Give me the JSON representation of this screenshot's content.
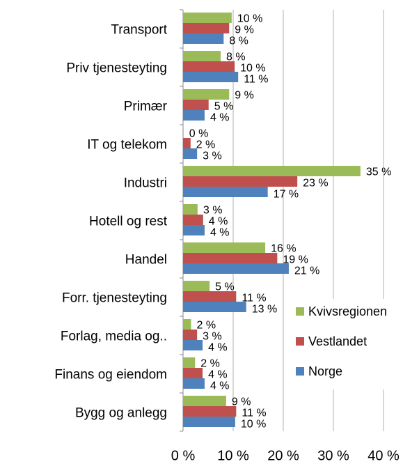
{
  "chart_data": {
    "type": "bar",
    "orientation": "horizontal",
    "categories": [
      "Transport",
      "Priv tjenesteyting",
      "Primær",
      "IT og telekom",
      "Industri",
      "Hotell og rest",
      "Handel",
      "Forr. tjenesteyting",
      "Forlag, media og..",
      "Finans og eiendom",
      "Bygg og anlegg"
    ],
    "series": [
      {
        "name": "Kvivsregionen",
        "color": "#9bbb59",
        "values": [
          9.7,
          7.5,
          9.2,
          0.1,
          35.4,
          2.9,
          16.4,
          5.3,
          1.6,
          2.4,
          8.6
        ],
        "value_labels": [
          "10 %",
          "8 %",
          "9 %",
          "0 %",
          "35 %",
          "3 %",
          "16 %",
          "5 %",
          "2 %",
          "2 %",
          "9 %"
        ]
      },
      {
        "name": "Vestlandet",
        "color": "#c0504d",
        "values": [
          9.2,
          10.3,
          5.1,
          1.5,
          22.8,
          4.0,
          18.8,
          10.6,
          2.8,
          3.9,
          10.6
        ],
        "value_labels": [
          "9 %",
          "10 %",
          "5 %",
          "2 %",
          "23 %",
          "4 %",
          "19 %",
          "11 %",
          "3 %",
          "4 %",
          "11 %"
        ]
      },
      {
        "name": "Norge",
        "color": "#4f81bd",
        "values": [
          8.1,
          11.0,
          4.3,
          2.8,
          16.9,
          4.3,
          21.1,
          12.6,
          3.9,
          4.3,
          10.4
        ],
        "value_labels": [
          "8 %",
          "11 %",
          "4 %",
          "3 %",
          "17 %",
          "4 %",
          "21 %",
          "13 %",
          "4 %",
          "4 %",
          "10 %"
        ]
      }
    ],
    "xlim": [
      0,
      40
    ],
    "xticks": [
      {
        "value": 0,
        "label": "0 %"
      },
      {
        "value": 10,
        "label": "10 %"
      },
      {
        "value": 20,
        "label": "20 %"
      },
      {
        "value": 30,
        "label": "30 %"
      },
      {
        "value": 40,
        "label": "40 %"
      }
    ],
    "grid": true,
    "legend": "lower right"
  }
}
